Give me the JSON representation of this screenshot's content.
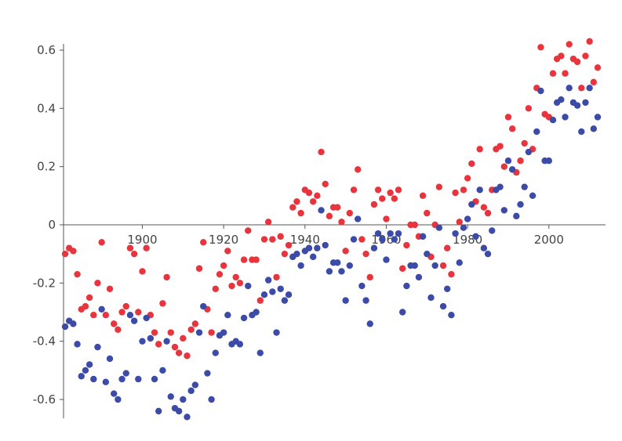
{
  "chart_data": {
    "type": "scatter",
    "title": "",
    "xlabel": "",
    "ylabel": "",
    "xlim": [
      1881,
      2012
    ],
    "ylim": [
      -0.66,
      0.64
    ],
    "grid": false,
    "x_ticks": [
      {
        "value": 1900,
        "label": "1900"
      },
      {
        "value": 1920,
        "label": "1920"
      },
      {
        "value": 1940,
        "label": "1940"
      },
      {
        "value": 1960,
        "label": "1960"
      },
      {
        "value": 1980,
        "label": "1980"
      },
      {
        "value": 2000,
        "label": "2000"
      }
    ],
    "y_ticks": [
      {
        "value": 0.6,
        "label": "0.6"
      },
      {
        "value": 0.4,
        "label": "0.4"
      },
      {
        "value": 0.2,
        "label": "0.2"
      },
      {
        "value": 0,
        "label": "0"
      },
      {
        "value": -0.2,
        "label": "-0.2"
      },
      {
        "value": -0.4,
        "label": "-0.4"
      },
      {
        "value": -0.6,
        "label": "-0.6"
      }
    ],
    "series": [
      {
        "color": "#e8343c",
        "points": [
          [
            1881,
            -0.1
          ],
          [
            1882,
            -0.08
          ],
          [
            1883,
            -0.09
          ],
          [
            1884,
            -0.17
          ],
          [
            1885,
            -0.29
          ],
          [
            1886,
            -0.28
          ],
          [
            1887,
            -0.25
          ],
          [
            1888,
            -0.31
          ],
          [
            1889,
            -0.2
          ],
          [
            1890,
            -0.06
          ],
          [
            1891,
            -0.31
          ],
          [
            1892,
            -0.22
          ],
          [
            1893,
            -0.34
          ],
          [
            1894,
            -0.36
          ],
          [
            1895,
            -0.3
          ],
          [
            1896,
            -0.28
          ],
          [
            1897,
            -0.08
          ],
          [
            1898,
            -0.1
          ],
          [
            1899,
            -0.3
          ],
          [
            1900,
            -0.16
          ],
          [
            1901,
            -0.08
          ],
          [
            1902,
            -0.31
          ],
          [
            1903,
            -0.37
          ],
          [
            1904,
            -0.41
          ],
          [
            1905,
            -0.27
          ],
          [
            1906,
            -0.18
          ],
          [
            1907,
            -0.37
          ],
          [
            1908,
            -0.42
          ],
          [
            1909,
            -0.44
          ],
          [
            1910,
            -0.39
          ],
          [
            1911,
            -0.45
          ],
          [
            1912,
            -0.36
          ],
          [
            1913,
            -0.34
          ],
          [
            1914,
            -0.15
          ],
          [
            1915,
            -0.06
          ],
          [
            1916,
            -0.29
          ],
          [
            1917,
            -0.37
          ],
          [
            1918,
            -0.22
          ],
          [
            1919,
            -0.17
          ],
          [
            1920,
            -0.14
          ],
          [
            1921,
            -0.09
          ],
          [
            1922,
            -0.21
          ],
          [
            1923,
            -0.18
          ],
          [
            1924,
            -0.2
          ],
          [
            1925,
            -0.12
          ],
          [
            1926,
            -0.02
          ],
          [
            1927,
            -0.12
          ],
          [
            1928,
            -0.12
          ],
          [
            1929,
            -0.26
          ],
          [
            1930,
            -0.05
          ],
          [
            1931,
            0.01
          ],
          [
            1932,
            -0.05
          ],
          [
            1933,
            -0.18
          ],
          [
            1934,
            -0.04
          ],
          [
            1935,
            -0.1
          ],
          [
            1936,
            -0.07
          ],
          [
            1937,
            0.06
          ],
          [
            1938,
            0.08
          ],
          [
            1939,
            0.04
          ],
          [
            1940,
            0.12
          ],
          [
            1941,
            0.11
          ],
          [
            1942,
            0.08
          ],
          [
            1943,
            0.1
          ],
          [
            1944,
            0.25
          ],
          [
            1945,
            0.14
          ],
          [
            1946,
            0.03
          ],
          [
            1947,
            0.06
          ],
          [
            1948,
            0.06
          ],
          [
            1949,
            0.01
          ],
          [
            1950,
            -0.09
          ],
          [
            1951,
            0.04
          ],
          [
            1952,
            0.12
          ],
          [
            1953,
            0.19
          ],
          [
            1954,
            -0.05
          ],
          [
            1955,
            -0.1
          ],
          [
            1956,
            -0.18
          ],
          [
            1957,
            0.07
          ],
          [
            1958,
            0.12
          ],
          [
            1959,
            0.09
          ],
          [
            1960,
            0.02
          ],
          [
            1961,
            0.11
          ],
          [
            1962,
            0.09
          ],
          [
            1963,
            0.12
          ],
          [
            1964,
            -0.15
          ],
          [
            1965,
            -0.07
          ],
          [
            1966,
            0.0
          ],
          [
            1967,
            0.0
          ],
          [
            1968,
            -0.04
          ],
          [
            1969,
            0.1
          ],
          [
            1970,
            0.04
          ],
          [
            1971,
            -0.11
          ],
          [
            1972,
            0.0
          ],
          [
            1973,
            0.13
          ],
          [
            1974,
            -0.14
          ],
          [
            1975,
            -0.08
          ],
          [
            1976,
            -0.17
          ],
          [
            1977,
            0.11
          ],
          [
            1978,
            0.01
          ],
          [
            1979,
            0.12
          ],
          [
            1980,
            0.16
          ],
          [
            1981,
            0.21
          ],
          [
            1982,
            0.08
          ],
          [
            1983,
            0.26
          ],
          [
            1984,
            0.06
          ],
          [
            1985,
            0.04
          ],
          [
            1986,
            0.12
          ],
          [
            1987,
            0.26
          ],
          [
            1988,
            0.27
          ],
          [
            1989,
            0.2
          ],
          [
            1990,
            0.37
          ],
          [
            1991,
            0.33
          ],
          [
            1992,
            0.18
          ],
          [
            1993,
            0.22
          ],
          [
            1994,
            0.28
          ],
          [
            1995,
            0.4
          ],
          [
            1996,
            0.26
          ],
          [
            1997,
            0.47
          ],
          [
            1998,
            0.61
          ],
          [
            1999,
            0.38
          ],
          [
            2000,
            0.37
          ],
          [
            2001,
            0.52
          ],
          [
            2002,
            0.57
          ],
          [
            2003,
            0.58
          ],
          [
            2004,
            0.52
          ],
          [
            2005,
            0.62
          ],
          [
            2006,
            0.57
          ],
          [
            2007,
            0.56
          ],
          [
            2008,
            0.47
          ],
          [
            2009,
            0.58
          ],
          [
            2010,
            0.63
          ],
          [
            2011,
            0.49
          ],
          [
            2012,
            0.54
          ]
        ]
      },
      {
        "color": "#3c4aa8",
        "points": [
          [
            1881,
            -0.35
          ],
          [
            1882,
            -0.33
          ],
          [
            1883,
            -0.34
          ],
          [
            1884,
            -0.41
          ],
          [
            1885,
            -0.52
          ],
          [
            1886,
            -0.5
          ],
          [
            1887,
            -0.48
          ],
          [
            1888,
            -0.53
          ],
          [
            1889,
            -0.42
          ],
          [
            1890,
            -0.29
          ],
          [
            1891,
            -0.54
          ],
          [
            1892,
            -0.46
          ],
          [
            1893,
            -0.58
          ],
          [
            1894,
            -0.6
          ],
          [
            1895,
            -0.53
          ],
          [
            1896,
            -0.51
          ],
          [
            1897,
            -0.31
          ],
          [
            1898,
            -0.33
          ],
          [
            1899,
            -0.53
          ],
          [
            1900,
            -0.4
          ],
          [
            1901,
            -0.32
          ],
          [
            1902,
            -0.39
          ],
          [
            1903,
            -0.53
          ],
          [
            1904,
            -0.64
          ],
          [
            1905,
            -0.5
          ],
          [
            1906,
            -0.4
          ],
          [
            1907,
            -0.59
          ],
          [
            1908,
            -0.63
          ],
          [
            1909,
            -0.64
          ],
          [
            1910,
            -0.6
          ],
          [
            1911,
            -0.66
          ],
          [
            1912,
            -0.57
          ],
          [
            1913,
            -0.55
          ],
          [
            1914,
            -0.37
          ],
          [
            1915,
            -0.28
          ],
          [
            1916,
            -0.51
          ],
          [
            1917,
            -0.6
          ],
          [
            1918,
            -0.44
          ],
          [
            1919,
            -0.38
          ],
          [
            1920,
            -0.37
          ],
          [
            1921,
            -0.31
          ],
          [
            1922,
            -0.41
          ],
          [
            1923,
            -0.4
          ],
          [
            1924,
            -0.41
          ],
          [
            1925,
            -0.32
          ],
          [
            1926,
            -0.21
          ],
          [
            1927,
            -0.31
          ],
          [
            1928,
            -0.3
          ],
          [
            1929,
            -0.44
          ],
          [
            1930,
            -0.24
          ],
          [
            1931,
            -0.19
          ],
          [
            1932,
            -0.23
          ],
          [
            1933,
            -0.37
          ],
          [
            1934,
            -0.22
          ],
          [
            1935,
            -0.26
          ],
          [
            1936,
            -0.24
          ],
          [
            1937,
            -0.11
          ],
          [
            1938,
            -0.1
          ],
          [
            1939,
            -0.14
          ],
          [
            1940,
            -0.09
          ],
          [
            1941,
            -0.08
          ],
          [
            1942,
            -0.11
          ],
          [
            1943,
            -0.08
          ],
          [
            1944,
            0.05
          ],
          [
            1945,
            -0.07
          ],
          [
            1946,
            -0.16
          ],
          [
            1947,
            -0.13
          ],
          [
            1948,
            -0.13
          ],
          [
            1949,
            -0.16
          ],
          [
            1950,
            -0.26
          ],
          [
            1951,
            -0.14
          ],
          [
            1952,
            -0.05
          ],
          [
            1953,
            0.02
          ],
          [
            1954,
            -0.21
          ],
          [
            1955,
            -0.26
          ],
          [
            1956,
            -0.34
          ],
          [
            1957,
            -0.08
          ],
          [
            1958,
            -0.03
          ],
          [
            1959,
            -0.05
          ],
          [
            1960,
            -0.12
          ],
          [
            1961,
            -0.03
          ],
          [
            1962,
            -0.05
          ],
          [
            1963,
            -0.03
          ],
          [
            1964,
            -0.3
          ],
          [
            1965,
            -0.21
          ],
          [
            1966,
            -0.14
          ],
          [
            1967,
            -0.14
          ],
          [
            1968,
            -0.18
          ],
          [
            1969,
            -0.04
          ],
          [
            1970,
            -0.1
          ],
          [
            1971,
            -0.25
          ],
          [
            1972,
            -0.14
          ],
          [
            1973,
            -0.01
          ],
          [
            1974,
            -0.28
          ],
          [
            1975,
            -0.22
          ],
          [
            1976,
            -0.31
          ],
          [
            1977,
            -0.03
          ],
          [
            1978,
            -0.13
          ],
          [
            1979,
            -0.01
          ],
          [
            1980,
            0.02
          ],
          [
            1981,
            0.07
          ],
          [
            1982,
            -0.04
          ],
          [
            1983,
            0.12
          ],
          [
            1984,
            -0.08
          ],
          [
            1985,
            -0.1
          ],
          [
            1986,
            -0.02
          ],
          [
            1987,
            0.12
          ],
          [
            1988,
            0.13
          ],
          [
            1989,
            0.05
          ],
          [
            1990,
            0.22
          ],
          [
            1991,
            0.19
          ],
          [
            1992,
            0.03
          ],
          [
            1993,
            0.07
          ],
          [
            1994,
            0.13
          ],
          [
            1995,
            0.25
          ],
          [
            1996,
            0.1
          ],
          [
            1997,
            0.32
          ],
          [
            1998,
            0.46
          ],
          [
            1999,
            0.22
          ],
          [
            2000,
            0.22
          ],
          [
            2001,
            0.36
          ],
          [
            2002,
            0.42
          ],
          [
            2003,
            0.43
          ],
          [
            2004,
            0.37
          ],
          [
            2005,
            0.47
          ],
          [
            2006,
            0.42
          ],
          [
            2007,
            0.41
          ],
          [
            2008,
            0.32
          ],
          [
            2009,
            0.42
          ],
          [
            2010,
            0.47
          ],
          [
            2011,
            0.33
          ],
          [
            2012,
            0.37
          ]
        ]
      }
    ]
  }
}
